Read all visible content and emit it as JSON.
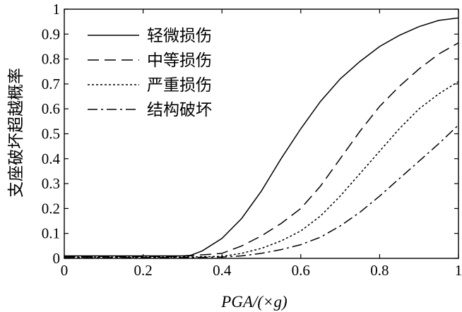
{
  "chart_data": {
    "type": "line",
    "title": "",
    "xlabel": "PGA/(×g)",
    "ylabel": "支座破坏超越概率",
    "xlim": [
      0,
      1
    ],
    "ylim": [
      0,
      1
    ],
    "x_ticks": [
      "0",
      "0.2",
      "0.4",
      "0.6",
      "0.8",
      "1"
    ],
    "y_ticks": [
      "0",
      "0.1",
      "0.2",
      "0.3",
      "0.4",
      "0.5",
      "0.6",
      "0.7",
      "0.8",
      "0.9",
      "1"
    ],
    "grid": false,
    "legend_position": "top-left",
    "series": [
      {
        "name": "轻微损伤",
        "dash": "solid",
        "color": "#000000",
        "x": [
          0,
          0.1,
          0.2,
          0.3,
          0.32,
          0.35,
          0.4,
          0.45,
          0.5,
          0.55,
          0.6,
          0.65,
          0.7,
          0.75,
          0.8,
          0.85,
          0.9,
          0.95,
          1.0
        ],
        "y": [
          0.01,
          0.01,
          0.01,
          0.01,
          0.012,
          0.03,
          0.08,
          0.16,
          0.27,
          0.4,
          0.52,
          0.63,
          0.72,
          0.79,
          0.85,
          0.895,
          0.93,
          0.955,
          0.965
        ]
      },
      {
        "name": "中等损伤",
        "dash": "dashed",
        "color": "#000000",
        "x": [
          0,
          0.1,
          0.2,
          0.3,
          0.4,
          0.45,
          0.5,
          0.55,
          0.6,
          0.65,
          0.7,
          0.75,
          0.8,
          0.85,
          0.9,
          0.95,
          1.0
        ],
        "y": [
          0.008,
          0.008,
          0.008,
          0.008,
          0.02,
          0.05,
          0.09,
          0.14,
          0.2,
          0.29,
          0.4,
          0.51,
          0.61,
          0.69,
          0.76,
          0.82,
          0.865
        ]
      },
      {
        "name": "严重损伤",
        "dash": "dotted",
        "color": "#000000",
        "x": [
          0,
          0.1,
          0.2,
          0.3,
          0.4,
          0.45,
          0.5,
          0.55,
          0.6,
          0.65,
          0.7,
          0.75,
          0.8,
          0.85,
          0.9,
          0.95,
          1.0
        ],
        "y": [
          0.005,
          0.005,
          0.005,
          0.005,
          0.008,
          0.02,
          0.04,
          0.07,
          0.11,
          0.17,
          0.25,
          0.34,
          0.43,
          0.52,
          0.6,
          0.66,
          0.71
        ]
      },
      {
        "name": "结构破坏",
        "dash": "dashdot",
        "color": "#000000",
        "x": [
          0,
          0.1,
          0.2,
          0.3,
          0.4,
          0.45,
          0.5,
          0.55,
          0.6,
          0.65,
          0.7,
          0.75,
          0.8,
          0.85,
          0.9,
          0.95,
          1.0
        ],
        "y": [
          0.003,
          0.003,
          0.003,
          0.003,
          0.005,
          0.01,
          0.02,
          0.035,
          0.055,
          0.085,
          0.13,
          0.185,
          0.25,
          0.32,
          0.39,
          0.46,
          0.535
        ]
      }
    ]
  }
}
